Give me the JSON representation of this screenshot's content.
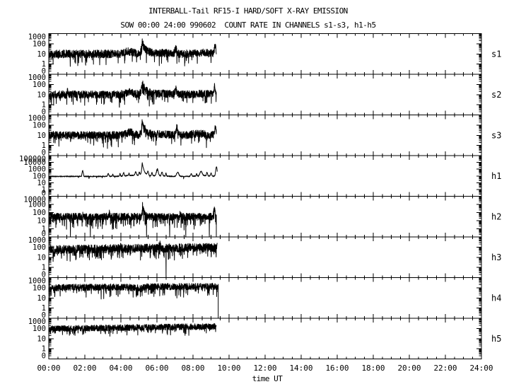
{
  "colors": {
    "foreground": "#000000",
    "background": "#ffffff"
  },
  "chart_data": {
    "type": "line",
    "title": "INTERBALL-Tail RF15-I HARD/SOFT X-RAY EMISSION",
    "subtitle": "SOW 00:00 24:00 990602  COUNT RATE IN CHANNELS s1-s3, h1-h5",
    "x_axis": {
      "axis_label": "time UT",
      "range_hours": [
        0,
        24
      ],
      "major_step_hours": 2,
      "minor_step_hours": 0.5,
      "tick_labels": [
        "00:00",
        "02:00",
        "04:00",
        "06:00",
        "08:00",
        "10:00",
        "12:00",
        "14:00",
        "16:00",
        "18:00",
        "20:00",
        "22:00",
        "24:00"
      ]
    },
    "y_axis_note": "log count rate per panel, bottom edge labeled 0",
    "panels": [
      {
        "channel": "s1",
        "y_tick_labels": [
          "1000",
          "100",
          "10",
          "1",
          "0"
        ],
        "series": {
          "seed": 11,
          "t_end": 9.3,
          "base": 10,
          "noise": 0.4,
          "down_p": 0.05,
          "down_depth": 1.0,
          "bumps": [
            {
              "t": 4.45,
              "w": 0.22,
              "a": 0.25
            },
            {
              "t": 6.15,
              "w": 0.5,
              "a": 0.1
            },
            {
              "t": 8.65,
              "w": 0.3,
              "a": 0.12
            }
          ],
          "spikes": [
            {
              "t": 5.18,
              "a": 1.12,
              "rise": 0.05,
              "decay": 0.2
            },
            {
              "t": 7.05,
              "a": 0.48,
              "w": 0.05
            },
            {
              "t": 9.22,
              "a": 0.74,
              "w": 0.04
            }
          ]
        }
      },
      {
        "channel": "s2",
        "y_tick_labels": [
          "1000",
          "100",
          "10",
          "1",
          "0"
        ],
        "series": {
          "seed": 22,
          "t_end": 9.3,
          "base": 10,
          "noise": 0.38,
          "down_p": 0.05,
          "down_depth": 1.0,
          "bumps": [
            {
              "t": 4.45,
              "w": 0.22,
              "a": 0.24
            },
            {
              "t": 6.15,
              "w": 0.5,
              "a": 0.1
            },
            {
              "t": 8.6,
              "w": 0.3,
              "a": 0.1
            }
          ],
          "spikes": [
            {
              "t": 1.05,
              "a": 0.35,
              "w": 0.03
            },
            {
              "t": 5.18,
              "a": 1.18,
              "rise": 0.05,
              "decay": 0.2
            },
            {
              "t": 7.05,
              "a": 0.5,
              "w": 0.05
            },
            {
              "t": 9.2,
              "a": 0.78,
              "w": 0.04
            }
          ]
        }
      },
      {
        "channel": "s3",
        "y_tick_labels": [
          "1000",
          "100",
          "10",
          "1",
          "0"
        ],
        "series": {
          "seed": 33,
          "t_end": 9.3,
          "base": 10,
          "noise": 0.38,
          "down_p": 0.05,
          "down_depth": 1.0,
          "bumps": [
            {
              "t": 4.5,
              "w": 0.2,
              "a": 0.28
            },
            {
              "t": 6.2,
              "w": 0.4,
              "a": 0.1
            },
            {
              "t": 8.3,
              "w": 0.35,
              "a": 0.16
            }
          ],
          "spikes": [
            {
              "t": 5.18,
              "a": 1.44,
              "rise": 0.05,
              "decay": 0.18
            },
            {
              "t": 7.1,
              "a": 0.78,
              "w": 0.04
            },
            {
              "t": 9.25,
              "a": 0.85,
              "w": 0.04
            }
          ]
        }
      },
      {
        "channel": "h1",
        "y_tick_labels": [
          "100000",
          "10000",
          "1000",
          "100",
          "10",
          "1",
          "0"
        ],
        "series": {
          "seed": 44,
          "t_end": 9.35,
          "base": 85,
          "noise": 0.07,
          "down_p": 0.015,
          "down_depth": 0.35,
          "bumps": [
            {
              "t": 4.7,
              "w": 0.45,
              "a": 0.15
            },
            {
              "t": 6.1,
              "w": 0.35,
              "a": 0.12
            },
            {
              "t": 8.55,
              "w": 0.35,
              "a": 0.12
            }
          ],
          "spikes": [
            {
              "t": 1.88,
              "a": 0.9,
              "w": 0.03
            },
            {
              "t": 3.3,
              "a": 0.45,
              "w": 0.03
            },
            {
              "t": 3.55,
              "a": 0.35,
              "w": 0.02
            },
            {
              "t": 3.95,
              "a": 0.4,
              "w": 0.02
            },
            {
              "t": 4.15,
              "a": 0.5,
              "w": 0.03
            },
            {
              "t": 4.45,
              "a": 0.35,
              "w": 0.02
            },
            {
              "t": 4.82,
              "a": 0.5,
              "w": 0.04
            },
            {
              "t": 5.02,
              "a": 0.45,
              "w": 0.03
            },
            {
              "t": 5.18,
              "a": 2.0,
              "rise": 0.04,
              "decay": 0.12
            },
            {
              "t": 5.5,
              "a": 0.6,
              "w": 0.03
            },
            {
              "t": 5.72,
              "a": 0.45,
              "w": 0.025
            },
            {
              "t": 6.02,
              "a": 1.0,
              "w": 0.05
            },
            {
              "t": 6.28,
              "a": 0.55,
              "w": 0.03
            },
            {
              "t": 6.5,
              "a": 0.4,
              "w": 0.02
            },
            {
              "t": 7.15,
              "a": 0.62,
              "w": 0.06
            },
            {
              "t": 7.9,
              "a": 0.4,
              "w": 0.03
            },
            {
              "t": 8.2,
              "a": 0.35,
              "w": 0.02
            },
            {
              "t": 8.45,
              "a": 0.65,
              "w": 0.06
            },
            {
              "t": 8.78,
              "a": 0.5,
              "w": 0.03
            },
            {
              "t": 9.0,
              "a": 0.45,
              "w": 0.03
            },
            {
              "t": 9.3,
              "a": 1.41,
              "w": 0.04
            }
          ]
        }
      },
      {
        "channel": "h2",
        "y_tick_labels": [
          "10000",
          "1000",
          "100",
          "10",
          "1",
          "0"
        ],
        "series": {
          "seed": 55,
          "t_end": 9.3,
          "base": 30,
          "noise": 0.45,
          "down_p": 0.12,
          "down_depth": 1.2,
          "end_drop": true,
          "zeros": [
            1.2,
            2.3,
            5.42,
            6.7,
            7.6,
            8.9
          ],
          "spikes": [
            {
              "t": 1.9,
              "a": 0.4,
              "w": 0.02
            },
            {
              "t": 3.35,
              "a": 0.5,
              "w": 0.02
            },
            {
              "t": 5.2,
              "a": 1.4,
              "rise": 0.03,
              "decay": 0.09
            },
            {
              "t": 7.3,
              "a": 0.45,
              "w": 0.02
            },
            {
              "t": 9.18,
              "a": 1.23,
              "w": 0.03
            }
          ]
        }
      },
      {
        "channel": "h3",
        "y_tick_labels": [
          "1000",
          "100",
          "10",
          "1",
          "0"
        ],
        "series": {
          "seed": 66,
          "t_end": 9.35,
          "base": 55,
          "trend": 4,
          "noise": 0.42,
          "down_p": 0.1,
          "down_depth": 0.95,
          "start_high": {
            "until": 0.07,
            "v": 1300
          },
          "zeros": [
            6.5
          ],
          "spikes": [
            {
              "t": 4.0,
              "a": 0.35,
              "w": 0.02
            },
            {
              "t": 6.15,
              "a": 0.4,
              "w": 0.03
            }
          ]
        }
      },
      {
        "channel": "h4",
        "y_tick_labels": [
          "1000",
          "100",
          "10",
          "1",
          "0"
        ],
        "series": {
          "seed": 77,
          "t_end": 9.4,
          "base": 100,
          "trend": 4,
          "noise": 0.33,
          "down_p": 0.08,
          "down_depth": 0.85,
          "end_drop": true,
          "start_high": {
            "until": 0.05,
            "v": 1800
          },
          "bumps": [
            {
              "t": 4.9,
              "w": 0.3,
              "a": -0.1
            }
          ]
        }
      },
      {
        "channel": "h5",
        "y_tick_labels": [
          "1000",
          "100",
          "10",
          "1",
          "0"
        ],
        "series": {
          "seed": 88,
          "t_end": 9.3,
          "base": 90,
          "trend": 7,
          "noise": 0.3,
          "down_p": 0.06,
          "down_depth": 0.7
        }
      }
    ]
  }
}
